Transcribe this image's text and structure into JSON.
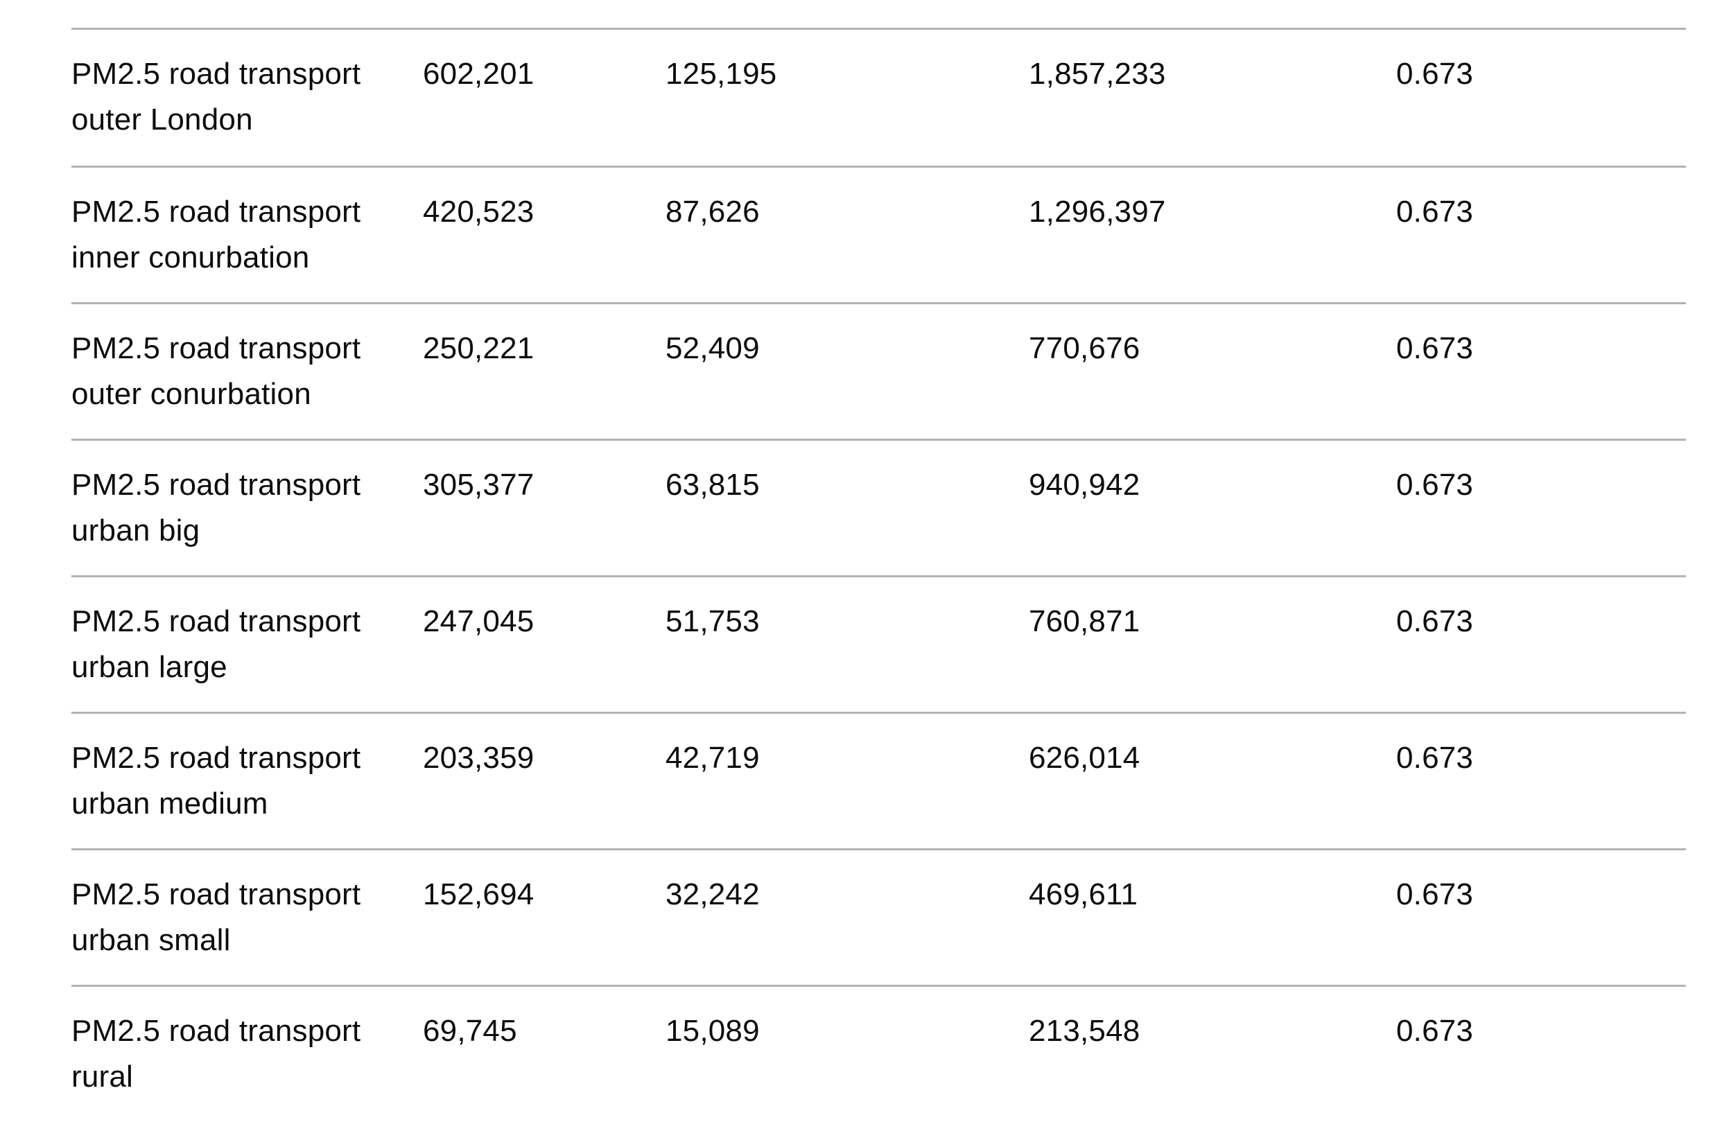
{
  "table": {
    "rows": [
      {
        "name": "PM2.5 road transport outer London",
        "col1": "602,201",
        "col2": "125,195",
        "col3": "1,857,233",
        "col4": "0.673"
      },
      {
        "name": "PM2.5 road transport inner conurbation",
        "col1": "420,523",
        "col2": "87,626",
        "col3": "1,296,397",
        "col4": "0.673"
      },
      {
        "name": "PM2.5 road transport outer conurbation",
        "col1": "250,221",
        "col2": "52,409",
        "col3": "770,676",
        "col4": "0.673"
      },
      {
        "name": "PM2.5 road transport urban big",
        "col1": "305,377",
        "col2": "63,815",
        "col3": "940,942",
        "col4": "0.673"
      },
      {
        "name": "PM2.5 road transport urban large",
        "col1": "247,045",
        "col2": "51,753",
        "col3": "760,871",
        "col4": "0.673"
      },
      {
        "name": "PM2.5 road transport urban medium",
        "col1": "203,359",
        "col2": "42,719",
        "col3": "626,014",
        "col4": "0.673"
      },
      {
        "name": "PM2.5 road transport urban small",
        "col1": "152,694",
        "col2": "32,242",
        "col3": "469,611",
        "col4": "0.673"
      },
      {
        "name": "PM2.5 road transport rural",
        "col1": "69,745",
        "col2": "15,089",
        "col3": "213,548",
        "col4": "0.673"
      }
    ]
  }
}
